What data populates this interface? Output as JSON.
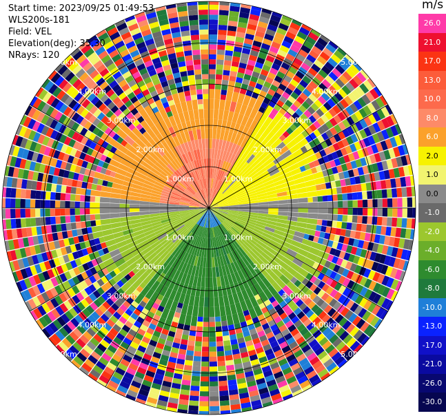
{
  "header": {
    "start_time": "Start time: 2023/09/25 01:49:53",
    "instrument": "WLS200s-181",
    "field": "Field: VEL",
    "elevation": "Elevation(deg): 35.30",
    "nrays": "NRays: 120"
  },
  "colorbar": {
    "title": "m/s",
    "levels": [
      {
        "label": "26.0",
        "color": "#ff3aa8"
      },
      {
        "label": "21.0",
        "color": "#ee1030"
      },
      {
        "label": "17.0",
        "color": "#fb3413"
      },
      {
        "label": "13.0",
        "color": "#fc5c3a"
      },
      {
        "label": "10.0",
        "color": "#fd6a4c"
      },
      {
        "label": "8.0",
        "color": "#fd8a68"
      },
      {
        "label": "6.0",
        "color": "#fba12b"
      },
      {
        "label": "2.0",
        "color": "#f7f200"
      },
      {
        "label": "1.0",
        "color": "#f2f470"
      },
      {
        "label": "0.0",
        "color": "#8a8a8a"
      },
      {
        "label": "-1.0",
        "color": "#6a6a6a"
      },
      {
        "label": "-2.0",
        "color": "#9cc72e"
      },
      {
        "label": "-4.0",
        "color": "#6bae2a"
      },
      {
        "label": "-6.0",
        "color": "#2e8b2e"
      },
      {
        "label": "-8.0",
        "color": "#1f7a3c"
      },
      {
        "label": "-10.0",
        "color": "#1f7fd8"
      },
      {
        "label": "-13.0",
        "color": "#0a22ff"
      },
      {
        "label": "-17.0",
        "color": "#1010c8"
      },
      {
        "label": "-21.0",
        "color": "#0a0aa0"
      },
      {
        "label": "-26.0",
        "color": "#080870"
      },
      {
        "label": "-30.0",
        "color": "#060650"
      }
    ]
  },
  "chart_data": {
    "type": "heatmap",
    "projection": "polar-ppi",
    "nrays": 120,
    "ranges_km": [
      1,
      2,
      3,
      4,
      5
    ],
    "range_ring_labels": [
      "1.00km",
      "2.00km",
      "3.00km",
      "4.00km",
      "5.00km"
    ],
    "max_range_km": 5.0,
    "valid_range_km": 2.7,
    "value_field": "VEL",
    "units": "m/s",
    "azimuth_sectors": [
      {
        "from_deg": -90,
        "to_deg": 0,
        "dominant_velocity": 6.0
      },
      {
        "from_deg": -30,
        "to_deg": 30,
        "dominant_velocity": 8.0
      },
      {
        "from_deg": 0,
        "to_deg": 90,
        "dominant_velocity": 2.0
      },
      {
        "from_deg": 85,
        "to_deg": 95,
        "dominant_velocity": -1.0
      },
      {
        "from_deg": 90,
        "to_deg": 135,
        "dominant_velocity": -2.0
      },
      {
        "from_deg": 135,
        "to_deg": 225,
        "dominant_velocity": -6.0
      },
      {
        "from_deg": 225,
        "to_deg": 265,
        "dominant_velocity": -2.0
      },
      {
        "from_deg": 265,
        "to_deg": 275,
        "dominant_velocity": -1.0
      }
    ],
    "far_range_noise": true,
    "grid": true
  }
}
